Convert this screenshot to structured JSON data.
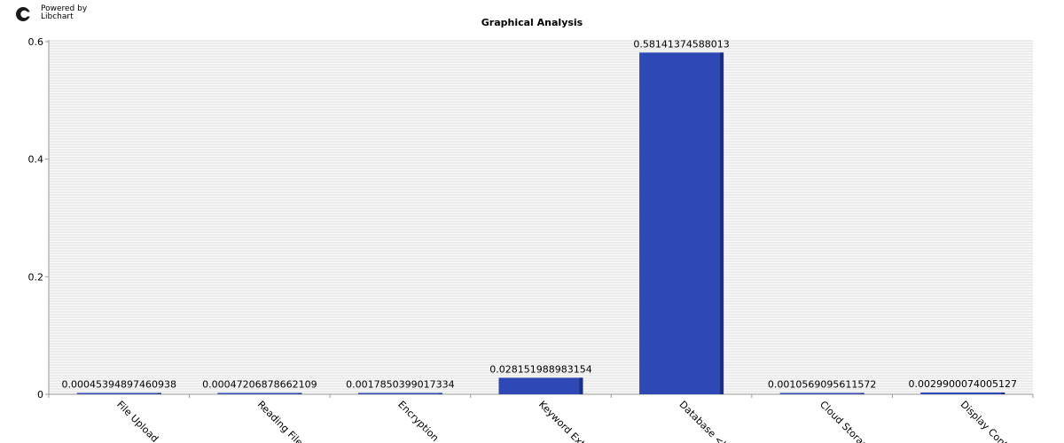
{
  "logo": {
    "powered_line": "Powered by",
    "brand_line": "Libchart"
  },
  "chart_data": {
    "type": "bar",
    "title": "Graphical Analysis",
    "xlabel": "",
    "ylabel": "",
    "ylim": [
      0,
      0.6
    ],
    "yticks": [
      "0",
      "0.2",
      "0.4",
      "0.6"
    ],
    "categories": [
      "File Upload",
      "Reading File",
      "Encryption",
      "Keyword Extr",
      "Database <br",
      "Cloud Storage",
      "Display Contr"
    ],
    "values": [
      0.00045394897460938,
      0.00047206878662109,
      0.0017850399017334,
      0.028151988983154,
      0.58141374588013,
      0.0010569095611572,
      0.0029900074005127
    ],
    "value_labels": [
      "0.00045394897460938",
      "0.00047206878662109",
      "0.0017850399017334",
      "0.028151988983154",
      "0.58141374588013",
      "0.0010569095611572",
      "0.0029900074005127"
    ],
    "grid": true,
    "colors": {
      "bar": "#2e48b5",
      "bar_shade": "#1c2f85",
      "grid_line": "#e0e0e0",
      "axis": "#999999"
    }
  }
}
